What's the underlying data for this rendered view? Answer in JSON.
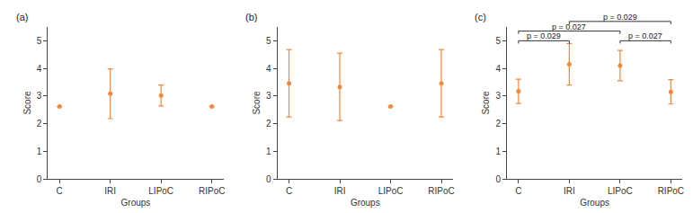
{
  "chart_data": [
    {
      "type": "scatter",
      "title": "(a)",
      "x_label": "Groups",
      "y_label": "Score",
      "categories": [
        "C",
        "IRI",
        "LIPoC",
        "RIPoC"
      ],
      "values": [
        2.62,
        3.08,
        3.02,
        2.62
      ],
      "errors": [
        0,
        0.9,
        0.38,
        0
      ],
      "color": "#f0883e",
      "marker": "circle",
      "grid": false,
      "ylim": [
        0,
        5.5
      ],
      "yticks": [
        0,
        1,
        2,
        3,
        4,
        5
      ]
    },
    {
      "type": "scatter",
      "title": "(b)",
      "x_label": "Groups",
      "y_label": "Score",
      "categories": [
        "C",
        "IRI",
        "LIPoC",
        "RIPoC"
      ],
      "values": [
        3.46,
        3.33,
        2.62,
        3.46
      ],
      "errors": [
        1.22,
        1.22,
        0,
        1.22
      ],
      "color": "#f0883e",
      "marker": "circle",
      "grid": false,
      "ylim": [
        0,
        5.5
      ],
      "yticks": [
        0,
        1,
        2,
        3,
        4,
        5
      ]
    },
    {
      "type": "scatter",
      "title": "(c)",
      "x_label": "Groups",
      "y_label": "Score",
      "categories": [
        "C",
        "IRI",
        "LIPoC",
        "RIPoC"
      ],
      "values": [
        3.17,
        4.15,
        4.1,
        3.15
      ],
      "errors": [
        0.44,
        0.75,
        0.55,
        0.44
      ],
      "color": "#f0883e",
      "marker": "circle",
      "grid": false,
      "ylim": [
        0,
        5.5
      ],
      "yticks": [
        0,
        1,
        2,
        3,
        4,
        5
      ],
      "annotations": [
        {
          "text": "p = 0.029",
          "from": "C",
          "to": "IRI"
        },
        {
          "text": "p = 0.027",
          "from": "LIPoC",
          "to": "RIPoC"
        },
        {
          "text": "p = 0.027",
          "from": "C",
          "to": "LIPoC"
        },
        {
          "text": "p = 0.029",
          "from": "IRI",
          "to": "RIPoC"
        }
      ]
    }
  ]
}
